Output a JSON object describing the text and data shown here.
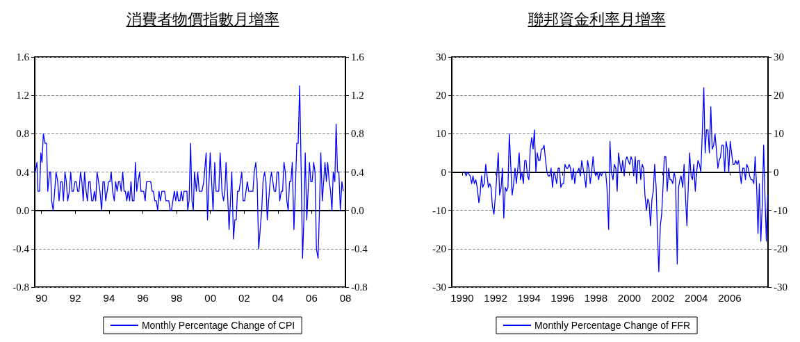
{
  "chart_data": [
    {
      "type": "line",
      "title": "消費者物價指數月增率",
      "xlim": [
        1989.6,
        2008.0
      ],
      "xticks": [
        {
          "value": 1990,
          "label": "90"
        },
        {
          "value": 1992,
          "label": "92"
        },
        {
          "value": 1994,
          "label": "94"
        },
        {
          "value": 1996,
          "label": "96"
        },
        {
          "value": 1998,
          "label": "98"
        },
        {
          "value": 2000,
          "label": "00"
        },
        {
          "value": 2002,
          "label": "02"
        },
        {
          "value": 2004,
          "label": "04"
        },
        {
          "value": 2006,
          "label": "06"
        },
        {
          "value": 2008,
          "label": "08"
        }
      ],
      "ylim": [
        -0.8,
        1.6
      ],
      "yticks": [
        -0.8,
        -0.4,
        {
          "value": 0,
          "label": "0.0"
        },
        0.4,
        0.8,
        1.2,
        1.6
      ],
      "y2lim": [
        -0.8,
        1.6
      ],
      "y2ticks": [
        -0.8,
        -0.4,
        {
          "value": 0,
          "label": "0.0"
        },
        0.4,
        0.8,
        1.2,
        1.6
      ],
      "grid": "y",
      "legend": "bottom",
      "marker": "none",
      "line_style": "solid",
      "x": [
        1989.63,
        1989.73,
        1989.79,
        1989.89,
        1989.96,
        1990.03,
        1990.11,
        1990.21,
        1990.3,
        1990.37,
        1990.48,
        1990.54,
        1990.6,
        1990.69,
        1990.78,
        1990.86,
        1990.96,
        1991.04,
        1991.14,
        1991.22,
        1991.3,
        1991.39,
        1991.47,
        1991.55,
        1991.65,
        1991.73,
        1991.81,
        1991.89,
        1991.98,
        1992.06,
        1992.14,
        1992.22,
        1992.31,
        1992.39,
        1992.47,
        1992.55,
        1992.64,
        1992.72,
        1992.8,
        1992.88,
        1992.97,
        1993.05,
        1993.13,
        1993.21,
        1993.29,
        1993.38,
        1993.46,
        1993.56,
        1993.64,
        1993.72,
        1993.8,
        1993.89,
        1993.97,
        1994.05,
        1994.13,
        1994.21,
        1994.31,
        1994.39,
        1994.48,
        1994.56,
        1994.64,
        1994.72,
        1994.81,
        1994.89,
        1994.97,
        1995.05,
        1995.13,
        1995.22,
        1995.3,
        1995.38,
        1995.48,
        1995.56,
        1995.64,
        1995.72,
        1995.81,
        1995.89,
        1995.97,
        1996.05,
        1996.14,
        1996.22,
        1996.3,
        1996.38,
        1996.47,
        1996.55,
        1996.63,
        1996.71,
        1996.8,
        1996.88,
        1996.96,
        1997.04,
        1997.13,
        1997.21,
        1997.29,
        1997.37,
        1997.45,
        1997.54,
        1997.62,
        1997.7,
        1997.78,
        1997.87,
        1997.95,
        1998.03,
        1998.11,
        1998.2,
        1998.28,
        1998.36,
        1998.44,
        1998.53,
        1998.61,
        1998.66,
        1998.74,
        1998.83,
        1998.91,
        1998.99,
        1999.06,
        1999.17,
        1999.25,
        1999.34,
        1999.5,
        1999.61,
        1999.75,
        1999.83,
        1999.99,
        2000.16,
        2000.26,
        2000.34,
        2000.5,
        2000.58,
        2000.69,
        2000.78,
        2000.86,
        2000.93,
        2001.01,
        2001.11,
        2001.27,
        2001.37,
        2001.45,
        2001.53,
        2001.61,
        2001.7,
        2001.78,
        2001.86,
        2001.94,
        2002.03,
        2002.11,
        2002.19,
        2002.27,
        2002.52,
        2002.6,
        2002.69,
        2002.77,
        2002.86,
        2002.95,
        2003.04,
        2003.12,
        2003.21,
        2003.29,
        2003.37,
        2003.45,
        2003.54,
        2003.62,
        2003.7,
        2003.78,
        2003.87,
        2003.95,
        2004.03,
        2004.11,
        2004.2,
        2004.28,
        2004.36,
        2004.44,
        2004.53,
        2004.61,
        2004.69,
        2004.77,
        2004.85,
        2004.95,
        2005.03,
        2005.12,
        2005.2,
        2005.29,
        2005.38,
        2005.46,
        2005.54,
        2005.62,
        2005.71,
        2005.79,
        2005.87,
        2005.95,
        2006.03,
        2006.12,
        2006.2,
        2006.28,
        2006.38,
        2006.46,
        2006.54,
        2006.63,
        2006.71,
        2006.79,
        2006.87,
        2006.95,
        2007.04,
        2007.12,
        2007.2,
        2007.28,
        2007.37,
        2007.45,
        2007.53,
        2007.61,
        2007.7,
        2007.79,
        2007.87
      ],
      "series": [
        {
          "name": "Monthly Percentage Change of CPI",
          "color": "#0000ff",
          "values": [
            0.4,
            0.5,
            0.2,
            0.2,
            0.6,
            0.5,
            0.8,
            0.7,
            0.7,
            0.2,
            0.4,
            0.4,
            0.1,
            0,
            0.2,
            0.4,
            0.3,
            0.1,
            0.3,
            0.3,
            0.1,
            0.4,
            0.3,
            0.1,
            0.2,
            0.4,
            0.2,
            0.2,
            0.3,
            0.3,
            0.2,
            0.2,
            0.4,
            0.3,
            0.1,
            0.4,
            0.2,
            0.1,
            0.3,
            0.3,
            0.1,
            0.1,
            0.2,
            0.1,
            0.4,
            0.3,
            0.2,
            0,
            0.3,
            0.3,
            0.1,
            0.2,
            0.3,
            0.3,
            0.4,
            0.2,
            0.1,
            0.3,
            0.2,
            0.3,
            0.3,
            0.2,
            0.4,
            0.2,
            0.2,
            0.1,
            0.2,
            0.1,
            0.3,
            0.1,
            0.1,
            0.5,
            0.2,
            0.3,
            0.4,
            0.2,
            0.2,
            0.2,
            0.1,
            0.3,
            0.3,
            0.3,
            0.3,
            0.2,
            0.2,
            0.1,
            0.1,
            0,
            0.2,
            0.1,
            0.2,
            0.2,
            0.2,
            0.1,
            0.1,
            0.1,
            0,
            0,
            0.1,
            0.2,
            0.1,
            0.2,
            0.1,
            0.1,
            0.2,
            0.1,
            0.2,
            0.2,
            0.2,
            0,
            0.1,
            0.7,
            0.1,
            0,
            0.4,
            0.2,
            0.4,
            0.2,
            0.2,
            0.3,
            0.6,
            -0.1,
            0.6,
            0,
            0.5,
            0.2,
            0.2,
            0.6,
            0.2,
            0.1,
            0.2,
            0.5,
            0.2,
            -0.2,
            0.4,
            -0.3,
            -0.1,
            -0.1,
            0.2,
            0.2,
            0.3,
            0.4,
            0.1,
            0.1,
            0.2,
            0.3,
            0.2,
            0.2,
            0.4,
            0.5,
            0.3,
            -0.4,
            -0.2,
            0,
            0.3,
            0.4,
            0.3,
            -0.1,
            0.1,
            0.3,
            0.4,
            0.3,
            0.2,
            0.2,
            0.4,
            0.4,
            0.1,
            0.2,
            0.2,
            0.5,
            0.4,
            0.1,
            0,
            0.3,
            0.3,
            0.5,
            -0.2,
            0.2,
            0.7,
            0.7,
            1.3,
            0.4,
            -0.5,
            -0.1,
            0.6,
            -0.1,
            0.2,
            0.5,
            0.3,
            0.3,
            0.5,
            0.4,
            -0.4,
            -0.5,
            0,
            0.6,
            0.1,
            0.3,
            0.5,
            0.3,
            0.5,
            0.3,
            0.2,
            0,
            0.4,
            0.3,
            0.9,
            0.4,
            0.4,
            0,
            0.3,
            0.2
          ]
        }
      ]
    },
    {
      "type": "line",
      "title": "聯邦資金利率月增率",
      "xlim": [
        1989.38,
        2008.29
      ],
      "xticks": [
        1990,
        1992,
        1994,
        1996,
        1998,
        2000,
        2002,
        2004,
        2006
      ],
      "ylim": [
        -30,
        30
      ],
      "yticks": [
        -30,
        -20,
        -10,
        0,
        10,
        20,
        30
      ],
      "y2lim": [
        -30,
        30
      ],
      "y2ticks": [
        -30,
        -20,
        -10,
        0,
        10,
        20,
        30
      ],
      "grid": "y",
      "legend": "bottom",
      "marker": "none",
      "line_style": "solid",
      "x": [
        1990.07,
        1990.15,
        1990.24,
        1990.32,
        1990.48,
        1990.57,
        1990.65,
        1990.73,
        1990.82,
        1990.9,
        1991.0,
        1991.07,
        1991.16,
        1991.23,
        1991.32,
        1991.41,
        1991.57,
        1991.65,
        1991.73,
        1991.81,
        1991.9,
        1992.01,
        1992.16,
        1992.24,
        1992.33,
        1992.41,
        1992.49,
        1992.58,
        1992.66,
        1992.74,
        1992.82,
        1992.99,
        1993.08,
        1993.16,
        1993.24,
        1993.33,
        1993.41,
        1993.49,
        1993.57,
        1993.66,
        1993.74,
        1993.82,
        1993.91,
        1993.99,
        1994.07,
        1994.16,
        1994.24,
        1994.32,
        1994.41,
        1994.49,
        1994.57,
        1994.65,
        1994.74,
        1994.82,
        1994.9,
        1994.99,
        1995.07,
        1995.15,
        1995.24,
        1995.32,
        1995.4,
        1995.49,
        1995.57,
        1995.65,
        1995.74,
        1995.82,
        1995.9,
        1995.99,
        1996.07,
        1996.15,
        1996.24,
        1996.32,
        1996.4,
        1996.48,
        1996.57,
        1996.65,
        1996.73,
        1996.82,
        1996.9,
        1996.98,
        1997.07,
        1997.15,
        1997.23,
        1997.31,
        1997.4,
        1997.5,
        1997.58,
        1997.66,
        1997.74,
        1997.83,
        1997.91,
        1997.99,
        1998.08,
        1998.16,
        1998.24,
        1998.33,
        1998.41,
        1998.49,
        1998.58,
        1998.66,
        1998.76,
        1998.84,
        1998.92,
        1999.02,
        1999.1,
        1999.19,
        1999.27,
        1999.35,
        1999.44,
        1999.52,
        1999.6,
        1999.69,
        1999.77,
        1999.85,
        1999.93,
        2000.02,
        2000.1,
        2000.18,
        2000.26,
        2000.35,
        2000.43,
        2000.51,
        2000.6,
        2000.68,
        2000.77,
        2000.85,
        2000.93,
        2001.02,
        2001.1,
        2001.18,
        2001.26,
        2001.35,
        2001.43,
        2001.51,
        2001.6,
        2001.68,
        2001.76,
        2001.85,
        2001.93,
        2002.01,
        2002.09,
        2002.18,
        2002.26,
        2002.35,
        2002.43,
        2002.51,
        2002.59,
        2002.68,
        2002.76,
        2002.86,
        2002.94,
        2003.02,
        2003.09,
        2003.19,
        2003.27,
        2003.35,
        2003.44,
        2003.52,
        2003.6,
        2003.69,
        2003.77,
        2003.85,
        2003.94,
        2004.02,
        2004.1,
        2004.19,
        2004.27,
        2004.35,
        2004.45,
        2004.53,
        2004.61,
        2004.7,
        2004.78,
        2004.87,
        2004.95,
        2005.04,
        2005.12,
        2005.2,
        2005.29,
        2005.37,
        2005.45,
        2005.53,
        2005.61,
        2005.7,
        2005.78,
        2005.86,
        2005.94,
        2006.03,
        2006.11,
        2006.2,
        2006.28,
        2006.36,
        2006.44,
        2006.53,
        2006.61,
        2006.69,
        2006.78,
        2006.86,
        2006.94,
        2007.02,
        2007.11,
        2007.19,
        2007.28,
        2007.36,
        2007.44,
        2007.52,
        2007.61,
        2007.69,
        2007.77,
        2007.86,
        2007.94,
        2008.03,
        2008.11,
        2008.19,
        2008.27
      ],
      "series": [
        {
          "name": "Monthly Percentage Change of FFR",
          "color": "#0000ff",
          "values": [
            0,
            0,
            -1,
            0,
            -1,
            -3,
            -1,
            -3,
            -2,
            -4,
            -8,
            -6,
            -1,
            -4,
            -3,
            2,
            -4,
            -3,
            -4,
            -9,
            -11,
            -5,
            5,
            -6,
            -4,
            1,
            -12,
            -4,
            -5,
            -4,
            10,
            -6,
            -3,
            1,
            -3,
            1,
            5,
            -2,
            0,
            -3,
            3,
            3,
            -1,
            -2,
            6,
            9,
            6,
            11,
            0,
            5,
            3,
            3,
            6,
            6,
            7,
            3,
            0,
            -1,
            -1,
            1,
            -4,
            0,
            -1,
            -3,
            1,
            1,
            -4,
            -3,
            -3,
            2,
            1,
            1,
            2,
            1,
            -2,
            1,
            -3,
            0,
            0,
            1,
            -1,
            3,
            1,
            -1,
            -4,
            3,
            1,
            -3,
            0,
            4,
            0,
            -1,
            0,
            -2,
            0,
            -1,
            0,
            0,
            0,
            -4,
            -15,
            8,
            0,
            -2,
            2,
            1,
            -5,
            5,
            2,
            0,
            3,
            -1,
            3,
            4,
            3,
            2,
            4,
            3,
            -1,
            4,
            -3,
            3,
            3,
            -2,
            2,
            1,
            -6,
            -10,
            -7,
            -8,
            -14,
            -7,
            -5,
            2,
            -4,
            -16,
            -26,
            -14,
            -11,
            -4,
            4,
            4,
            -5,
            1,
            -2,
            -2,
            -3,
            0,
            -2,
            -24,
            -4,
            -2,
            -1,
            -4,
            2,
            -6,
            -14,
            -4,
            5,
            -1,
            -2,
            2,
            -5,
            0,
            3,
            2,
            0,
            9,
            22,
            5,
            11,
            11,
            5,
            17,
            6,
            7,
            10,
            6,
            1,
            3,
            4,
            7,
            7,
            0,
            8,
            6,
            0,
            8,
            5,
            2,
            2,
            3,
            2,
            3,
            0,
            -3,
            1,
            1,
            -2,
            2,
            1,
            -1,
            -2,
            -2,
            -3,
            4,
            -4,
            -16,
            -3,
            -18,
            -9,
            7,
            -7,
            -18,
            -6
          ]
        }
      ]
    }
  ]
}
